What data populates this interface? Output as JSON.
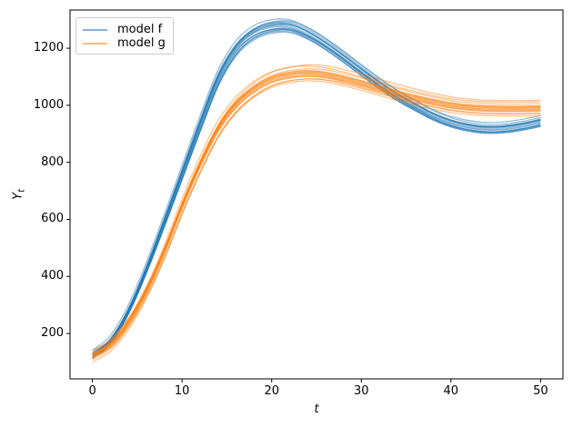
{
  "chart_data": {
    "type": "line",
    "title": "",
    "xlabel": "t",
    "ylabel": {
      "base": "Y",
      "subscript": "t"
    },
    "x_ticks": [
      0,
      10,
      20,
      30,
      40,
      50
    ],
    "y_ticks": [
      200,
      400,
      600,
      800,
      1000,
      1200
    ],
    "xlim": [
      -2.5,
      52.5
    ],
    "ylim": [
      41,
      1334
    ],
    "grid": false,
    "legend": {
      "position": "upper left",
      "entries": [
        {
          "label": "model f",
          "color": "#1f77b4"
        },
        {
          "label": "model g",
          "color": "#ff7f0e"
        }
      ]
    },
    "series": [
      {
        "name": "model f",
        "color": "#1f77b4",
        "alpha": 0.5,
        "t": [
          0,
          2,
          4,
          6,
          8,
          10,
          12,
          14,
          16,
          18,
          20,
          22,
          24,
          26,
          28,
          30,
          32,
          34,
          36,
          38,
          40,
          42,
          44,
          46,
          48,
          50
        ],
        "mean": [
          125,
          175,
          280,
          425,
          590,
          760,
          930,
          1090,
          1195,
          1250,
          1272,
          1273,
          1248,
          1210,
          1165,
          1118,
          1072,
          1030,
          995,
          962,
          938,
          923,
          916,
          918,
          927,
          940
        ],
        "ensemble": {
          "runs": 16,
          "start_jitter": 8,
          "amp_jitter": 0.01,
          "time_jitter": 0.25
        }
      },
      {
        "name": "model g",
        "color": "#ff7f0e",
        "alpha": 0.5,
        "t": [
          0,
          2,
          4,
          6,
          8,
          10,
          12,
          14,
          16,
          18,
          20,
          22,
          24,
          26,
          28,
          30,
          32,
          34,
          36,
          38,
          40,
          42,
          44,
          46,
          48,
          50
        ],
        "mean": [
          120,
          158,
          235,
          345,
          485,
          645,
          790,
          915,
          1000,
          1055,
          1090,
          1106,
          1112,
          1107,
          1094,
          1078,
          1060,
          1042,
          1026,
          1012,
          1000,
          993,
          989,
          988,
          988,
          989
        ],
        "ensemble": {
          "runs": 16,
          "start_jitter": 9,
          "amp_jitter": 0.01,
          "time_jitter": 0.25
        }
      }
    ]
  }
}
